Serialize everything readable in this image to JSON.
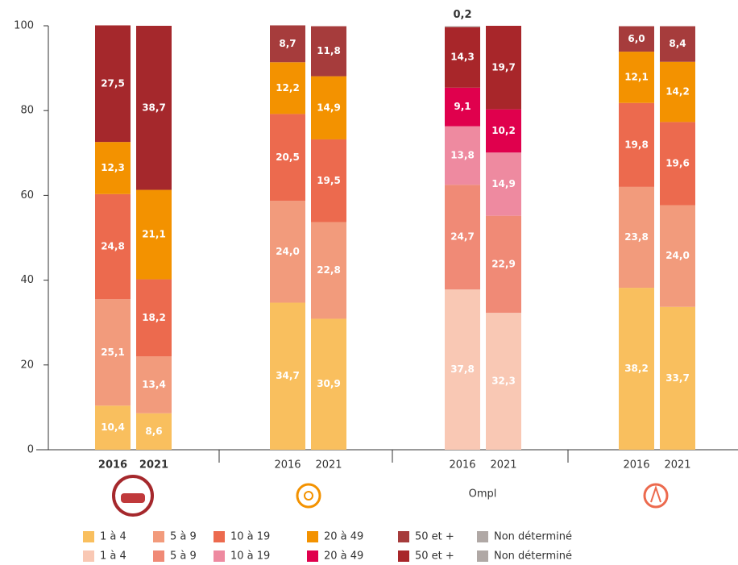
{
  "chart_data": {
    "type": "bar",
    "stacked": true,
    "ylim": [
      0,
      100
    ],
    "yticks": [
      0,
      20,
      40,
      60,
      80,
      100
    ],
    "groups": [
      {
        "categories": [
          "2016",
          "2021"
        ],
        "bold_categories": true,
        "series": [
          {
            "color": "#f9bf5e",
            "values": [
              10.4,
              8.6
            ],
            "value_labels": [
              "10,4",
              "8,6"
            ]
          },
          {
            "color": "#f29b7c",
            "values": [
              25.1,
              13.4
            ],
            "value_labels": [
              "25,1",
              "13,4"
            ]
          },
          {
            "color": "#ec6a4e",
            "values": [
              24.8,
              18.2
            ],
            "value_labels": [
              "24,8",
              "18,2"
            ]
          },
          {
            "color": "#f39200",
            "values": [
              12.3,
              21.1
            ],
            "value_labels": [
              "12,3",
              "21,1"
            ]
          },
          {
            "color": "#a5282c",
            "values": [
              27.5,
              38.7
            ],
            "value_labels": [
              "27,5",
              "38,7"
            ]
          }
        ]
      },
      {
        "categories": [
          "2016",
          "2021"
        ],
        "series": [
          {
            "color": "#f9bf5e",
            "values": [
              34.7,
              30.9
            ],
            "value_labels": [
              "34,7",
              "30,9"
            ]
          },
          {
            "color": "#f29b7c",
            "values": [
              24.0,
              22.8
            ],
            "value_labels": [
              "24,0",
              "22,8"
            ]
          },
          {
            "color": "#ec6a4e",
            "values": [
              20.5,
              19.5
            ],
            "value_labels": [
              "20,5",
              "19,5"
            ]
          },
          {
            "color": "#f39200",
            "values": [
              12.2,
              14.9
            ],
            "value_labels": [
              "12,2",
              "14,9"
            ]
          },
          {
            "color": "#a63c3c",
            "values": [
              8.7,
              11.8
            ],
            "value_labels": [
              "8,7",
              "11,8"
            ]
          }
        ]
      },
      {
        "categories": [
          "2016",
          "2021"
        ],
        "logo": "Ompl",
        "series": [
          {
            "color": "#f9c8b4",
            "values": [
              37.8,
              32.3
            ],
            "value_labels": [
              "37,8",
              "32,3"
            ]
          },
          {
            "color": "#f08a76",
            "values": [
              24.7,
              22.9
            ],
            "value_labels": [
              "24,7",
              "22,9"
            ]
          },
          {
            "color": "#ee8aa0",
            "values": [
              13.8,
              14.9
            ],
            "value_labels": [
              "13,8",
              "14,9"
            ]
          },
          {
            "color": "#e0004d",
            "values": [
              9.1,
              10.2
            ],
            "value_labels": [
              "9,1",
              "10,2"
            ]
          },
          {
            "color": "#a8262a",
            "values": [
              14.3,
              19.7
            ],
            "value_labels": [
              "14,3",
              "19,7"
            ]
          },
          {
            "color": "#b0a8a5",
            "values": [
              0.2,
              null
            ],
            "value_labels": [
              "0,2",
              null
            ]
          }
        ]
      },
      {
        "categories": [
          "2016",
          "2021"
        ],
        "series": [
          {
            "color": "#f9bf5e",
            "values": [
              38.2,
              33.7
            ],
            "value_labels": [
              "38,2",
              "33,7"
            ]
          },
          {
            "color": "#f29b7c",
            "values": [
              23.8,
              24.0
            ],
            "value_labels": [
              "23,8",
              "24,0"
            ]
          },
          {
            "color": "#ec6a4e",
            "values": [
              19.8,
              19.6
            ],
            "value_labels": [
              "19,8",
              "19,6"
            ]
          },
          {
            "color": "#f39200",
            "values": [
              12.1,
              14.2
            ],
            "value_labels": [
              "12,1",
              "14,2"
            ]
          },
          {
            "color": "#a63c3c",
            "values": [
              6.0,
              8.4
            ],
            "value_labels": [
              "6,0",
              "8,4"
            ]
          }
        ]
      }
    ],
    "legend": [
      [
        {
          "name": "1 à 4",
          "color": "#f9bf5e"
        },
        {
          "name": "5 à 9",
          "color": "#f29b7c"
        },
        {
          "name": "10 à 19",
          "color": "#ec6a4e"
        },
        {
          "name": "20 à 49",
          "color": "#f39200"
        },
        {
          "name": "50 et +",
          "color": "#a63c3c"
        },
        {
          "name": "Non déterminé",
          "color": "#b0a8a5"
        }
      ],
      [
        {
          "name": "1 à 4",
          "color": "#f9c8b4"
        },
        {
          "name": "5 à 9",
          "color": "#f08a76"
        },
        {
          "name": "10 à 19",
          "color": "#ee8aa0"
        },
        {
          "name": "20 à 49",
          "color": "#e0004d"
        },
        {
          "name": "50 et +",
          "color": "#a8262a"
        },
        {
          "name": "Non déterminé",
          "color": "#b0a8a5"
        }
      ]
    ]
  }
}
